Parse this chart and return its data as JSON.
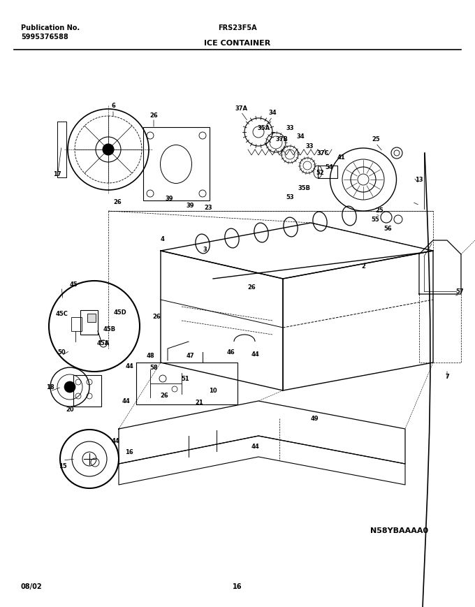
{
  "fig_width": 6.8,
  "fig_height": 8.7,
  "dpi": 100,
  "bg_color": "#ffffff",
  "pub_label": "Publication No.",
  "pub_number": "5995376588",
  "model": "FRS23F5A",
  "section": "ICE CONTAINER",
  "diagram_code": "N58YBAAAA0",
  "date": "08/02",
  "page": "16",
  "header_fontsize": 7,
  "footer_fontsize": 7,
  "label_fontsize": 6.5,
  "label_color": "#000000",
  "line_color": "#000000",
  "bg_color_diagram": "#ffffff"
}
